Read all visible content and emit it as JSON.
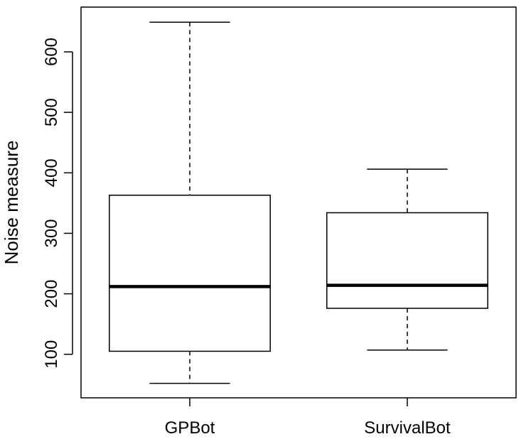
{
  "chart_data": {
    "type": "boxplot",
    "title": "",
    "xlabel": "",
    "ylabel": "Noise measure",
    "categories": [
      "GPBot",
      "SurvivalBot"
    ],
    "boxes": [
      {
        "name": "GPBot",
        "whisker_low": 52,
        "q1": 105,
        "median": 212,
        "q3": 363,
        "whisker_high": 649
      },
      {
        "name": "SurvivalBot",
        "whisker_low": 107,
        "q1": 176,
        "median": 214,
        "q3": 334,
        "whisker_high": 406
      }
    ],
    "yticks": [
      100,
      200,
      300,
      400,
      500,
      600
    ],
    "ytick_labels": [
      "100",
      "200",
      "300",
      "400",
      "500",
      "600"
    ],
    "ylim": [
      28,
      674
    ],
    "grid": false,
    "colors": {
      "stroke": "#000000",
      "fill": "#ffffff"
    }
  }
}
